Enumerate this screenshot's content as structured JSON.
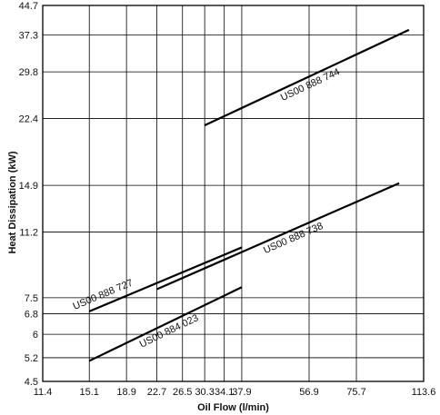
{
  "chart_data": {
    "type": "line",
    "xlabel": "Oil Flow (l/min)",
    "ylabel": "Heat Dissipation (kW)",
    "x_scale": "log",
    "y_scale": "log",
    "xlim": [
      11.4,
      113.6
    ],
    "ylim": [
      4.5,
      44.7
    ],
    "grid": true,
    "x_ticks": [
      "11.4",
      "15.1",
      "18.9",
      "22.7",
      "26.5",
      "30.3",
      "34.1",
      "37.9",
      "56.9",
      "75.7",
      "113.6"
    ],
    "y_ticks": [
      "4.5",
      "5.2",
      "6",
      "6.8",
      "7.5",
      "11.2",
      "14.9",
      "22.4",
      "29.8",
      "37.3",
      "44.7"
    ],
    "series": [
      {
        "name": "US00 888 744",
        "x": [
          30.3,
          104.0
        ],
        "y": [
          21.5,
          38.5
        ]
      },
      {
        "name": "US00 888 738",
        "x": [
          22.7,
          98.0
        ],
        "y": [
          7.9,
          15.1
        ]
      },
      {
        "name": "US00 888 727",
        "x": [
          15.1,
          37.9
        ],
        "y": [
          6.9,
          10.2
        ]
      },
      {
        "name": "US00 884 023",
        "x": [
          15.1,
          37.9
        ],
        "y": [
          5.1,
          8.0
        ]
      }
    ]
  }
}
